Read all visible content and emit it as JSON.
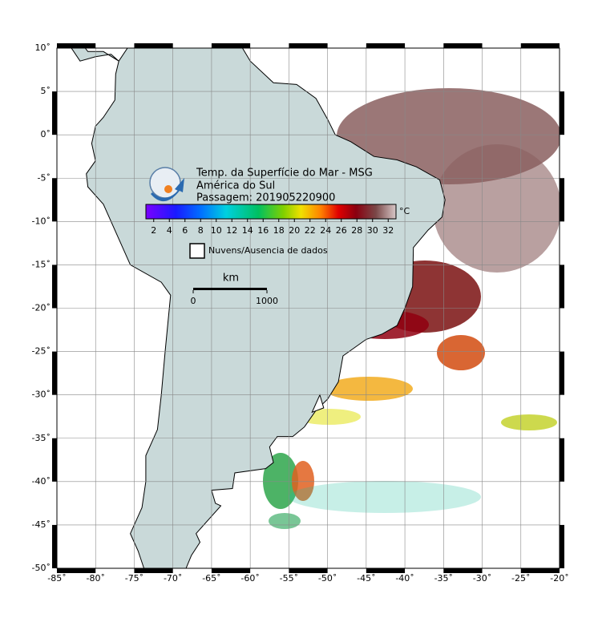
{
  "map": {
    "title": [
      "Temp. da Superfície do Mar - MSG",
      "América do Sul",
      "Passagem: 201905220900"
    ],
    "lonlim": [
      -85,
      -20
    ],
    "latlim": [
      -50,
      10
    ],
    "lon_ticks": [
      {
        "value": -85,
        "label": "-85˚"
      },
      {
        "value": -80,
        "label": "-80˚"
      },
      {
        "value": -75,
        "label": "-75˚"
      },
      {
        "value": -70,
        "label": "-70˚"
      },
      {
        "value": -65,
        "label": "-65˚"
      },
      {
        "value": -60,
        "label": "-60˚"
      },
      {
        "value": -55,
        "label": "-55˚"
      },
      {
        "value": -50,
        "label": "-50˚"
      },
      {
        "value": -45,
        "label": "-45˚"
      },
      {
        "value": -40,
        "label": "-40˚"
      },
      {
        "value": -35,
        "label": "-35˚"
      },
      {
        "value": -30,
        "label": "-30˚"
      },
      {
        "value": -25,
        "label": "-25˚"
      },
      {
        "value": -20,
        "label": "-20˚"
      }
    ],
    "lat_ticks": [
      {
        "value": 10,
        "label": "10˚"
      },
      {
        "value": 5,
        "label": "5˚"
      },
      {
        "value": 0,
        "label": "0˚"
      },
      {
        "value": -5,
        "label": "-5˚"
      },
      {
        "value": -10,
        "label": "-10˚"
      },
      {
        "value": -15,
        "label": "-15˚"
      },
      {
        "value": -20,
        "label": "-20˚"
      },
      {
        "value": -25,
        "label": "-25˚"
      },
      {
        "value": -30,
        "label": "-30˚"
      },
      {
        "value": -35,
        "label": "-35˚"
      },
      {
        "value": -40,
        "label": "-40˚"
      },
      {
        "value": -45,
        "label": "-45˚"
      },
      {
        "value": -50,
        "label": "-50˚"
      }
    ],
    "colorbar": {
      "unit": "°C",
      "lim": [
        1,
        33
      ],
      "ticks": [
        2,
        4,
        6,
        8,
        10,
        12,
        14,
        16,
        18,
        20,
        22,
        24,
        26,
        28,
        30,
        32
      ]
    },
    "legend": "Nuvens/Ausencia de dados",
    "scale": {
      "unit": "km",
      "ticks": [
        0,
        1000
      ]
    }
  }
}
